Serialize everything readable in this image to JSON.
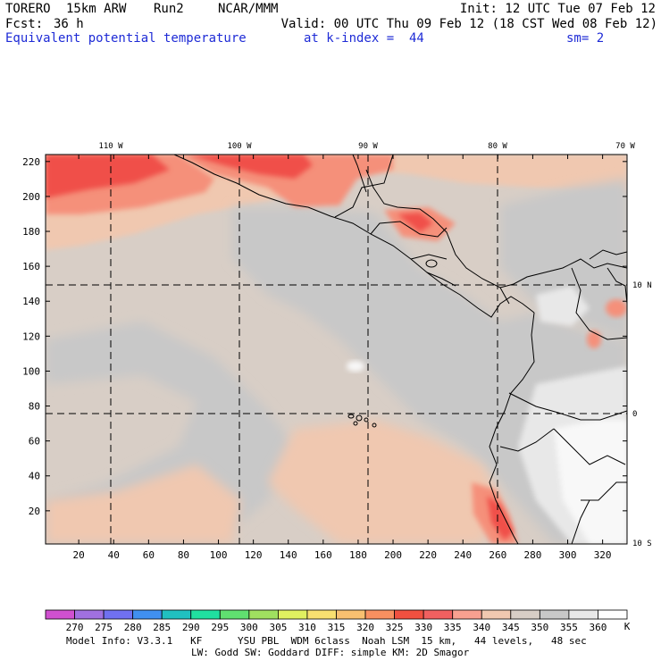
{
  "header": {
    "model": "TORERO",
    "resolution": "15km ARW",
    "run": "Run2",
    "org": "NCAR/MMM",
    "init": "Init: 12 UTC Tue 07 Feb 12",
    "fcst_label": "Fcst:",
    "fcst_value": "36 h",
    "valid": "Valid: 00 UTC Thu 09 Feb 12 (18 CST Wed 08 Feb 12)",
    "field": "Equivalent potential temperature",
    "level": "at k-index =  44",
    "smoothing": "sm= 2"
  },
  "map": {
    "lon_labels": [
      "110 W",
      "100 W",
      "90 W",
      "80 W",
      "70 W"
    ],
    "lat_labels": [
      "10 N",
      "0",
      "10 S"
    ],
    "x_ticks": [
      "20",
      "40",
      "60",
      "80",
      "100",
      "120",
      "140",
      "160",
      "180",
      "200",
      "220",
      "240",
      "260",
      "280",
      "300",
      "320"
    ],
    "y_ticks": [
      "20",
      "40",
      "60",
      "80",
      "100",
      "120",
      "140",
      "160",
      "180",
      "200",
      "220"
    ],
    "x_range": [
      1,
      334
    ],
    "y_range": [
      1,
      224
    ],
    "colors": {
      "band_330_335": "#f0504a",
      "band_335_340": "#f5907a",
      "band_340_345": "#f0c8b0",
      "band_345_350": "#d8cec6",
      "band_350_355": "#c8c8c8",
      "band_355_360": "#e8e8e8",
      "band_360_plus": "#f8f8f8"
    }
  },
  "colorbar": {
    "labels": [
      "270",
      "275",
      "280",
      "285",
      "290",
      "295",
      "300",
      "305",
      "310",
      "315",
      "320",
      "325",
      "330",
      "335",
      "340",
      "345",
      "350",
      "355",
      "360"
    ],
    "unit": "K",
    "colors": [
      "#d050d0",
      "#a070e0",
      "#7070f0",
      "#4090f0",
      "#20c0c0",
      "#20e0a0",
      "#60e070",
      "#a0e060",
      "#e0f060",
      "#f8e070",
      "#f8c070",
      "#f89060",
      "#f05040",
      "#f06060",
      "#f8a090",
      "#f0c8b0",
      "#d8cec6",
      "#c8c8c8",
      "#e8e8e8",
      "#ffffff"
    ]
  },
  "footer": {
    "line1": "Model Info: V3.3.1   KF      YSU PBL  WDM 6class  Noah LSM  15 km,   44 levels,   48 sec",
    "line2": "LW: Godd SW: Goddard DIFF: simple KM: 2D Smagor"
  }
}
